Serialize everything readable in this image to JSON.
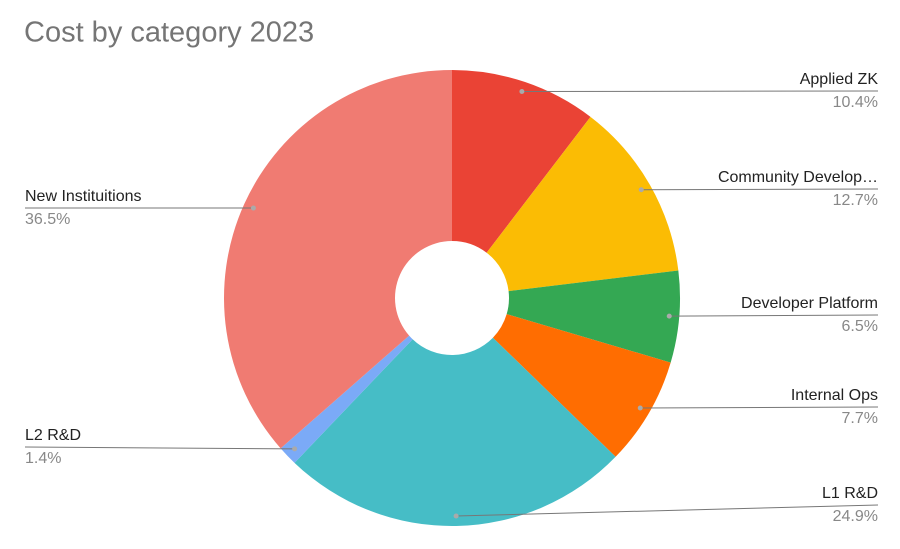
{
  "chart_data": {
    "type": "pie",
    "title": "Cost by category 2023",
    "categories": [
      "Applied ZK",
      "Community Develop…",
      "Developer Platform",
      "Internal Ops",
      "L1 R&D",
      "L2 R&D",
      "New Instituitions"
    ],
    "values": [
      10.4,
      12.7,
      6.5,
      7.7,
      24.9,
      1.4,
      36.5
    ],
    "value_labels": [
      "10.4%",
      "12.7%",
      "6.5%",
      "7.7%",
      "24.9%",
      "1.4%",
      "36.5%"
    ],
    "colors": [
      "#ea4335",
      "#fbbc04",
      "#34a853",
      "#ff6d01",
      "#46bdc6",
      "#7baaf7",
      "#f07b72"
    ]
  }
}
